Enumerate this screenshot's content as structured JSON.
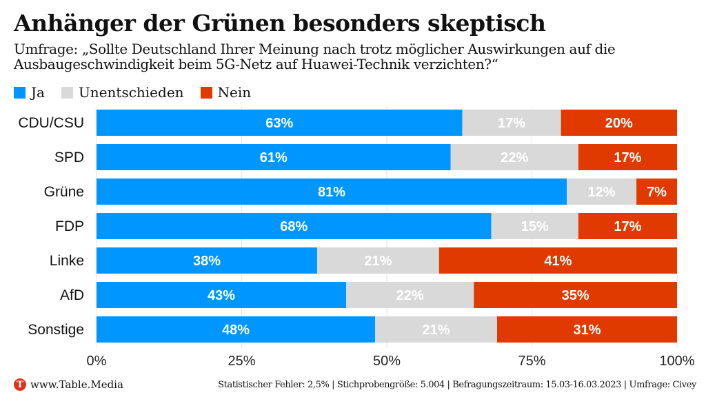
{
  "title": "Anhänger der Grünen besonders skeptisch",
  "subtitle": "Umfrage: „Sollte Deutschland Ihrer Meinung nach trotz möglicher Auswirkungen auf die Ausbaugeschwindigkeit beim 5G-Netz auf Huawei-Technik verzichten?“",
  "footer": {
    "brand": "www.Table.Media",
    "logo_letter": "T",
    "source": "Statistischer Fehler: 2,5% | Stichprobengröße: 5.004 | Befragungszeitraum: 15.03-16.03.2023 | Umfrage: Civey"
  },
  "chart_data": {
    "type": "bar",
    "orientation": "horizontal",
    "stacked": true,
    "categories": [
      "CDU/CSU",
      "SPD",
      "Grüne",
      "FDP",
      "Linke",
      "AfD",
      "Sonstige"
    ],
    "series": [
      {
        "name": "Ja",
        "color": "#0096ff",
        "label_color": "#ffffff",
        "values": [
          63,
          61,
          81,
          68,
          38,
          43,
          48
        ]
      },
      {
        "name": "Unentschieden",
        "color": "#d9d9d9",
        "label_color": "#ffffff",
        "values": [
          17,
          22,
          12,
          15,
          21,
          22,
          21
        ]
      },
      {
        "name": "Nein",
        "color": "#e03a00",
        "label_color": "#ffffff",
        "values": [
          20,
          17,
          7,
          17,
          41,
          35,
          31
        ]
      }
    ],
    "xlim": [
      0,
      100
    ],
    "xticks": [
      "0%",
      "25%",
      "50%",
      "75%",
      "100%"
    ],
    "legend": "top-left",
    "grid": true
  }
}
